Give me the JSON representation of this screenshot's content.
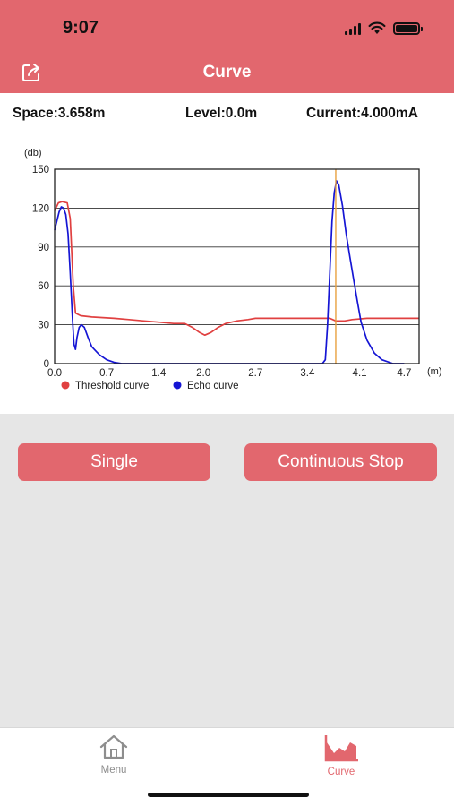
{
  "status": {
    "time": "9:07"
  },
  "header": {
    "title": "Curve"
  },
  "info": {
    "space": "Space:3.658m",
    "level": "Level:0.0m",
    "current": "Current:4.000mA"
  },
  "colors": {
    "accent": "#e2676e",
    "threshold": "#e04040",
    "echo": "#1515d4",
    "marker": "#e8a040"
  },
  "chart_data": {
    "type": "line",
    "ylabel": "(db)",
    "xlabel": "(m)",
    "xlim": [
      0,
      4.9
    ],
    "ylim": [
      0,
      150
    ],
    "x_ticks": [
      "0.0",
      "0.7",
      "1.4",
      "2.0",
      "2.7",
      "3.4",
      "4.1",
      "4.7"
    ],
    "y_ticks": [
      "0",
      "30",
      "60",
      "90",
      "120",
      "150"
    ],
    "marker_x": 3.78,
    "series": [
      {
        "name": "Threshold curve",
        "points": [
          [
            0.0,
            118
          ],
          [
            0.05,
            124
          ],
          [
            0.1,
            125
          ],
          [
            0.17,
            124
          ],
          [
            0.21,
            112
          ],
          [
            0.25,
            60
          ],
          [
            0.28,
            39
          ],
          [
            0.35,
            37
          ],
          [
            0.5,
            36
          ],
          [
            0.8,
            35
          ],
          [
            1.0,
            34
          ],
          [
            1.2,
            33
          ],
          [
            1.4,
            32
          ],
          [
            1.6,
            31
          ],
          [
            1.75,
            31
          ],
          [
            1.85,
            28
          ],
          [
            1.95,
            24
          ],
          [
            2.02,
            22
          ],
          [
            2.1,
            24
          ],
          [
            2.2,
            28
          ],
          [
            2.3,
            31
          ],
          [
            2.45,
            33
          ],
          [
            2.6,
            34
          ],
          [
            2.7,
            35
          ],
          [
            3.0,
            35
          ],
          [
            3.4,
            35
          ],
          [
            3.7,
            35
          ],
          [
            3.78,
            33
          ],
          [
            3.9,
            33
          ],
          [
            4.0,
            34
          ],
          [
            4.2,
            35
          ],
          [
            4.5,
            35
          ],
          [
            4.9,
            35
          ]
        ]
      },
      {
        "name": "Echo curve",
        "points": [
          [
            0.0,
            103
          ],
          [
            0.03,
            110
          ],
          [
            0.06,
            117
          ],
          [
            0.09,
            121
          ],
          [
            0.12,
            120
          ],
          [
            0.15,
            115
          ],
          [
            0.18,
            100
          ],
          [
            0.21,
            70
          ],
          [
            0.24,
            35
          ],
          [
            0.26,
            15
          ],
          [
            0.28,
            11
          ],
          [
            0.3,
            20
          ],
          [
            0.33,
            28
          ],
          [
            0.36,
            30
          ],
          [
            0.4,
            28
          ],
          [
            0.45,
            20
          ],
          [
            0.5,
            13
          ],
          [
            0.6,
            7
          ],
          [
            0.7,
            3
          ],
          [
            0.8,
            1
          ],
          [
            0.9,
            0
          ],
          [
            3.6,
            0
          ],
          [
            3.64,
            3
          ],
          [
            3.67,
            30
          ],
          [
            3.7,
            70
          ],
          [
            3.73,
            110
          ],
          [
            3.76,
            132
          ],
          [
            3.79,
            141
          ],
          [
            3.82,
            138
          ],
          [
            3.87,
            122
          ],
          [
            3.92,
            100
          ],
          [
            3.97,
            82
          ],
          [
            4.02,
            65
          ],
          [
            4.07,
            48
          ],
          [
            4.12,
            32
          ],
          [
            4.2,
            18
          ],
          [
            4.3,
            8
          ],
          [
            4.4,
            3
          ],
          [
            4.55,
            0
          ],
          [
            4.7,
            0
          ]
        ]
      }
    ]
  },
  "buttons": {
    "single": "Single",
    "continuous": "Continuous Stop"
  },
  "tabs": {
    "menu": "Menu",
    "curve": "Curve"
  }
}
